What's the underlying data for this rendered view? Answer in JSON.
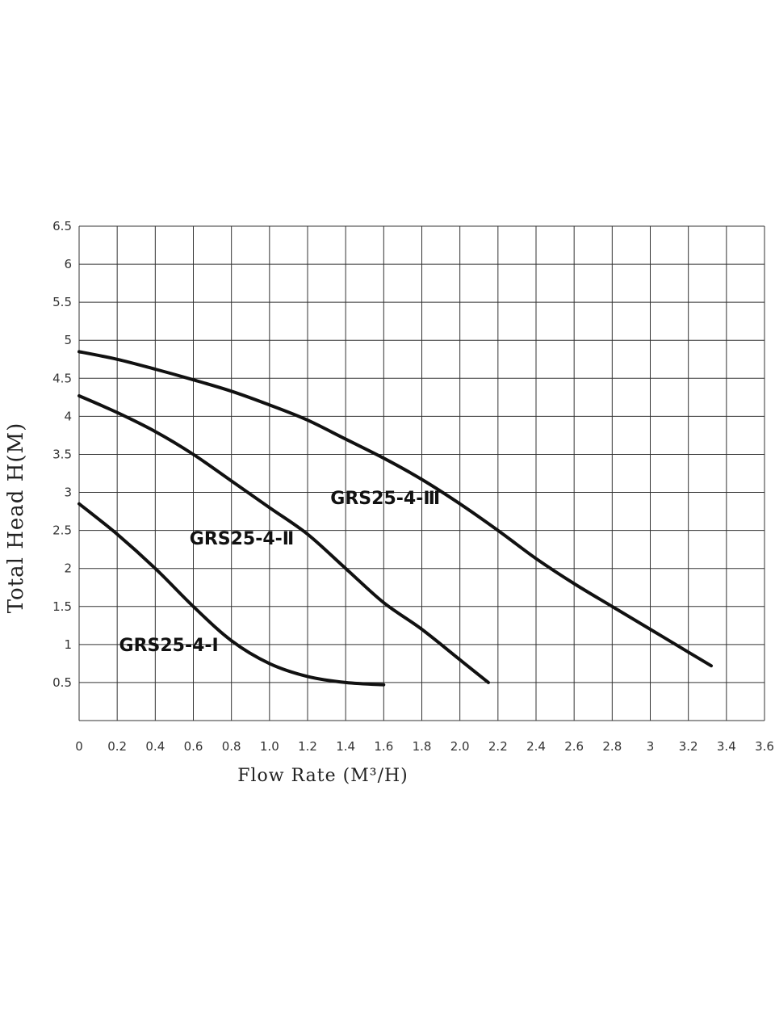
{
  "chart_data": {
    "type": "line",
    "title": "",
    "xlabel": "Flow Rate (M³/H)",
    "ylabel": "Total Head H(M)",
    "xlim": [
      0,
      3.6
    ],
    "ylim": [
      0,
      6.5
    ],
    "grid": true,
    "x_ticks": [
      "0",
      "0.2",
      "0.4",
      "0.6",
      "0.8",
      "1.0",
      "1.2",
      "1.4",
      "1.6",
      "1.8",
      "2.0",
      "2.2",
      "2.4",
      "2.6",
      "2.8",
      "3",
      "3.2",
      "3.4",
      "3.6"
    ],
    "y_ticks": [
      "0.5",
      "1",
      "1.5",
      "2",
      "2.5",
      "3",
      "3.5",
      "4",
      "4.5",
      "5",
      "5.5",
      "6",
      "6.5"
    ],
    "series": [
      {
        "name": "GRS25-4-Ⅰ",
        "x": [
          0,
          0.2,
          0.4,
          0.6,
          0.8,
          1.0,
          1.2,
          1.4,
          1.6
        ],
        "y": [
          2.85,
          2.45,
          2.0,
          1.5,
          1.05,
          0.75,
          0.58,
          0.5,
          0.47
        ]
      },
      {
        "name": "GRS25-4-Ⅱ",
        "x": [
          0,
          0.2,
          0.4,
          0.6,
          0.8,
          1.0,
          1.2,
          1.4,
          1.6,
          1.8,
          2.0,
          2.15
        ],
        "y": [
          4.27,
          4.05,
          3.8,
          3.5,
          3.15,
          2.8,
          2.45,
          2.0,
          1.55,
          1.2,
          0.8,
          0.5
        ]
      },
      {
        "name": "GRS25-4-Ⅲ",
        "x": [
          0,
          0.2,
          0.4,
          0.6,
          0.8,
          1.0,
          1.2,
          1.4,
          1.6,
          1.8,
          2.0,
          2.2,
          2.4,
          2.6,
          2.8,
          3.0,
          3.2,
          3.32
        ],
        "y": [
          4.85,
          4.75,
          4.62,
          4.48,
          4.33,
          4.15,
          3.95,
          3.7,
          3.45,
          3.17,
          2.85,
          2.5,
          2.13,
          1.8,
          1.5,
          1.2,
          0.9,
          0.72
        ]
      }
    ],
    "annotations": [
      {
        "text": "GRS25-4-Ⅲ",
        "x": 1.32,
        "y": 2.93
      },
      {
        "text": "GRS25-4-Ⅱ",
        "x": 0.58,
        "y": 2.4
      },
      {
        "text": "GRS25-4-Ⅰ",
        "x": 0.21,
        "y": 1.0
      }
    ]
  }
}
